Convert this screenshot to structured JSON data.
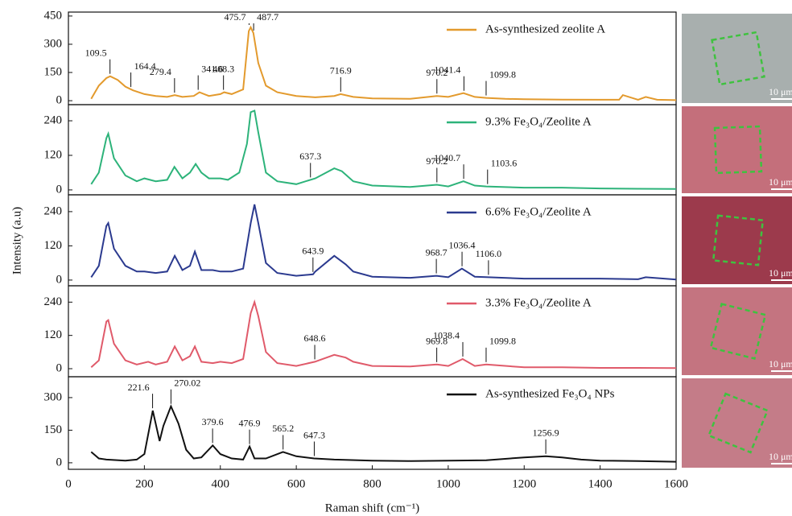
{
  "chart_data": [
    {
      "type": "line",
      "ylabel": "Intensity (a.u)",
      "xlim": [
        0,
        1600
      ],
      "ylim": [
        -21,
        471
      ],
      "yticks": [
        0,
        150,
        300,
        450
      ],
      "series": [
        {
          "name": "As-synthesized zeolite A",
          "color": "#e39a2d",
          "x": [
            60,
            80,
            100,
            110,
            130,
            150,
            170,
            200,
            230,
            260,
            280,
            300,
            330,
            345,
            370,
            400,
            410,
            430,
            460,
            475,
            480,
            487,
            500,
            520,
            550,
            600,
            650,
            700,
            717,
            750,
            800,
            900,
            970,
            1000,
            1040,
            1070,
            1100,
            1150,
            1200,
            1300,
            1400,
            1450,
            1460,
            1500,
            1520,
            1550,
            1600
          ],
          "values": [
            10,
            80,
            120,
            130,
            110,
            75,
            55,
            35,
            25,
            20,
            30,
            20,
            25,
            45,
            25,
            35,
            45,
            35,
            60,
            370,
            390,
            360,
            200,
            80,
            45,
            25,
            18,
            25,
            35,
            20,
            12,
            10,
            25,
            20,
            40,
            20,
            15,
            10,
            8,
            6,
            5,
            5,
            30,
            5,
            20,
            5,
            3
          ]
        }
      ],
      "annotations": [
        {
          "label": "109.5",
          "x": 109.5,
          "y": 130
        },
        {
          "label": "164.4",
          "x": 164.4,
          "y": 60
        },
        {
          "label": "279.4",
          "x": 279.4,
          "y": 30
        },
        {
          "label": "341.6",
          "x": 341.6,
          "y": 45
        },
        {
          "label": "408.3",
          "x": 408.3,
          "y": 45
        },
        {
          "label": "475.7",
          "x": 475.7,
          "y": 390
        },
        {
          "label": "487.7",
          "x": 487.7,
          "y": 360
        },
        {
          "label": "716.9",
          "x": 716.9,
          "y": 35
        },
        {
          "label": "970.2",
          "x": 970.2,
          "y": 25
        },
        {
          "label": "1041.4",
          "x": 1041.4,
          "y": 40
        },
        {
          "label": "1099.8",
          "x": 1099.8,
          "y": 15
        }
      ]
    },
    {
      "type": "line",
      "xlim": [
        0,
        1600
      ],
      "ylim": [
        -17,
        296
      ],
      "yticks": [
        0,
        120,
        240
      ],
      "series": [
        {
          "name": "9.3% Fe₃O₄/Zeolite A",
          "color": "#2db37a",
          "x": [
            60,
            80,
            100,
            105,
            120,
            150,
            180,
            200,
            230,
            260,
            279,
            300,
            320,
            335,
            350,
            370,
            400,
            420,
            450,
            470,
            480,
            490,
            500,
            520,
            550,
            600,
            637,
            650,
            700,
            720,
            750,
            800,
            900,
            970,
            1000,
            1040,
            1070,
            1100,
            1200,
            1300,
            1400,
            1500,
            1600
          ],
          "values": [
            20,
            60,
            180,
            195,
            110,
            50,
            30,
            40,
            30,
            35,
            80,
            40,
            60,
            90,
            60,
            40,
            40,
            35,
            60,
            160,
            270,
            275,
            200,
            60,
            30,
            20,
            35,
            40,
            75,
            65,
            30,
            15,
            10,
            18,
            12,
            30,
            15,
            12,
            8,
            8,
            5,
            4,
            3
          ]
        }
      ],
      "annotations": [
        {
          "label": "637.3",
          "x": 637.3,
          "y": 35
        },
        {
          "label": "970.2",
          "x": 970.2,
          "y": 18
        },
        {
          "label": "1040.7",
          "x": 1040.7,
          "y": 30
        },
        {
          "label": "1103.6",
          "x": 1103.6,
          "y": 12
        }
      ]
    },
    {
      "type": "line",
      "xlim": [
        0,
        1600
      ],
      "ylim": [
        -20,
        299
      ],
      "yticks": [
        0,
        120,
        240
      ],
      "series": [
        {
          "name": "6.6% Fe₃O₄/Zeolite A",
          "color": "#2b3a8f",
          "x": [
            60,
            80,
            100,
            105,
            120,
            150,
            180,
            200,
            230,
            260,
            280,
            300,
            320,
            333,
            350,
            380,
            400,
            430,
            460,
            480,
            490,
            500,
            520,
            550,
            600,
            644,
            650,
            700,
            730,
            750,
            800,
            900,
            969,
            1000,
            1036,
            1070,
            1106,
            1200,
            1300,
            1400,
            1500,
            1520,
            1600
          ],
          "values": [
            10,
            50,
            190,
            200,
            110,
            50,
            30,
            30,
            25,
            30,
            85,
            35,
            50,
            100,
            35,
            35,
            30,
            30,
            40,
            200,
            265,
            200,
            60,
            25,
            15,
            20,
            30,
            85,
            55,
            30,
            12,
            8,
            15,
            10,
            40,
            12,
            10,
            5,
            5,
            5,
            3,
            10,
            2
          ]
        }
      ],
      "annotations": [
        {
          "label": "643.9",
          "x": 643.9,
          "y": 20
        },
        {
          "label": "968.7",
          "x": 968.7,
          "y": 15
        },
        {
          "label": "1036.4",
          "x": 1036.4,
          "y": 40
        },
        {
          "label": "1106.0",
          "x": 1106.0,
          "y": 10
        }
      ]
    },
    {
      "type": "line",
      "xlim": [
        0,
        1600
      ],
      "ylim": [
        -29,
        299
      ],
      "yticks": [
        0,
        120,
        240
      ],
      "series": [
        {
          "name": "3.3% Fe₃O₄/Zeolite A",
          "color": "#e05a6a",
          "x": [
            60,
            80,
            100,
            105,
            120,
            150,
            180,
            210,
            230,
            260,
            280,
            300,
            320,
            333,
            350,
            380,
            400,
            430,
            460,
            480,
            490,
            500,
            520,
            550,
            600,
            649,
            700,
            730,
            750,
            800,
            900,
            970,
            1000,
            1038,
            1070,
            1100,
            1200,
            1300,
            1400,
            1500,
            1600
          ],
          "values": [
            5,
            30,
            170,
            175,
            90,
            30,
            15,
            25,
            15,
            25,
            80,
            30,
            45,
            80,
            25,
            20,
            25,
            20,
            35,
            200,
            240,
            190,
            60,
            20,
            10,
            25,
            50,
            40,
            25,
            10,
            8,
            15,
            10,
            35,
            10,
            15,
            5,
            5,
            3,
            3,
            2
          ]
        }
      ],
      "annotations": [
        {
          "label": "648.6",
          "x": 648.6,
          "y": 25
        },
        {
          "label": "969.8",
          "x": 969.8,
          "y": 15
        },
        {
          "label": "1038.4",
          "x": 1038.4,
          "y": 35
        },
        {
          "label": "1099.8",
          "x": 1099.8,
          "y": 15
        }
      ]
    },
    {
      "type": "line",
      "xlim": [
        0,
        1600
      ],
      "ylim": [
        -30,
        396
      ],
      "yticks": [
        0,
        150,
        300
      ],
      "xticks": [
        0,
        200,
        400,
        600,
        800,
        1000,
        1200,
        1400,
        1600
      ],
      "xlabel": "Raman shift (cm⁻¹)",
      "series": [
        {
          "name": "As-synthesized Fe₃O₄ NPs",
          "color": "#111111",
          "x": [
            60,
            80,
            100,
            150,
            180,
            200,
            222,
            240,
            250,
            270,
            290,
            310,
            330,
            350,
            380,
            400,
            430,
            460,
            477,
            490,
            520,
            565,
            600,
            647,
            700,
            800,
            900,
            1000,
            1100,
            1200,
            1257,
            1300,
            1350,
            1400,
            1500,
            1600
          ],
          "values": [
            50,
            20,
            15,
            10,
            15,
            40,
            240,
            100,
            170,
            260,
            180,
            60,
            20,
            25,
            80,
            40,
            20,
            15,
            75,
            20,
            20,
            50,
            30,
            20,
            15,
            10,
            8,
            10,
            12,
            25,
            30,
            25,
            15,
            10,
            8,
            5
          ]
        }
      ],
      "annotations": [
        {
          "label": "221.6",
          "x": 221.6,
          "y": 240
        },
        {
          "label": "270.02",
          "x": 270.02,
          "y": 260
        },
        {
          "label": "379.6",
          "x": 379.6,
          "y": 80
        },
        {
          "label": "476.9",
          "x": 476.9,
          "y": 75
        },
        {
          "label": "565.2",
          "x": 565.2,
          "y": 50
        },
        {
          "label": "647.3",
          "x": 647.3,
          "y": 20
        },
        {
          "label": "1256.9",
          "x": 1256.9,
          "y": 30
        }
      ]
    }
  ],
  "micrographs": {
    "scale_bars": [
      "10 μm",
      "10 μm",
      "10 μm",
      "10 μm",
      "10 μm"
    ]
  }
}
